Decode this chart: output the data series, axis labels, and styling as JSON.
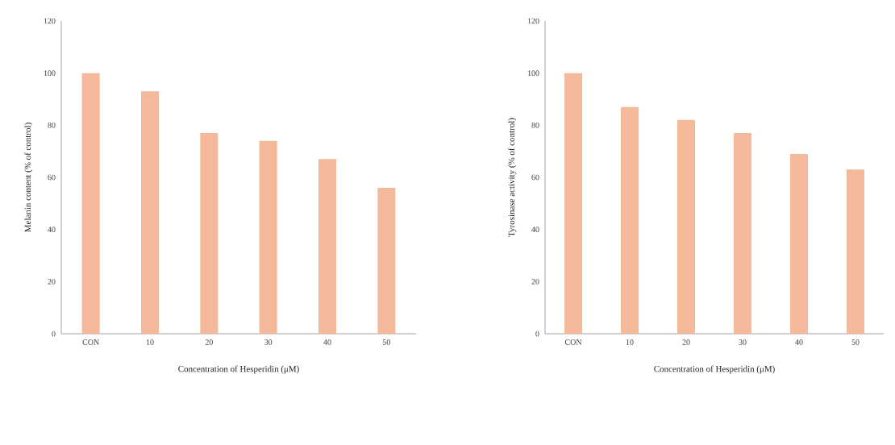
{
  "chart_data": [
    {
      "type": "bar",
      "xlabel": "Concentration of Hesperidin (μM)",
      "ylabel": "Melanin content (% of control)",
      "categories": [
        "CON",
        "10",
        "20",
        "30",
        "40",
        "50"
      ],
      "values": [
        100,
        93,
        77,
        74,
        67,
        56
      ],
      "color": "#f4b99b",
      "ylim": [
        0,
        120
      ],
      "yticks": [
        0,
        20,
        40,
        60,
        80,
        100,
        120
      ]
    },
    {
      "type": "bar",
      "xlabel": "Concentration of Hesperidin (μM)",
      "ylabel": "Tyrosinase activity (% of control)",
      "categories": [
        "CON",
        "10",
        "20",
        "30",
        "40",
        "50"
      ],
      "values": [
        100,
        87,
        82,
        77,
        69,
        63
      ],
      "color": "#f4b99b",
      "ylim": [
        0,
        120
      ],
      "yticks": [
        0,
        20,
        40,
        60,
        80,
        100,
        120
      ]
    }
  ]
}
